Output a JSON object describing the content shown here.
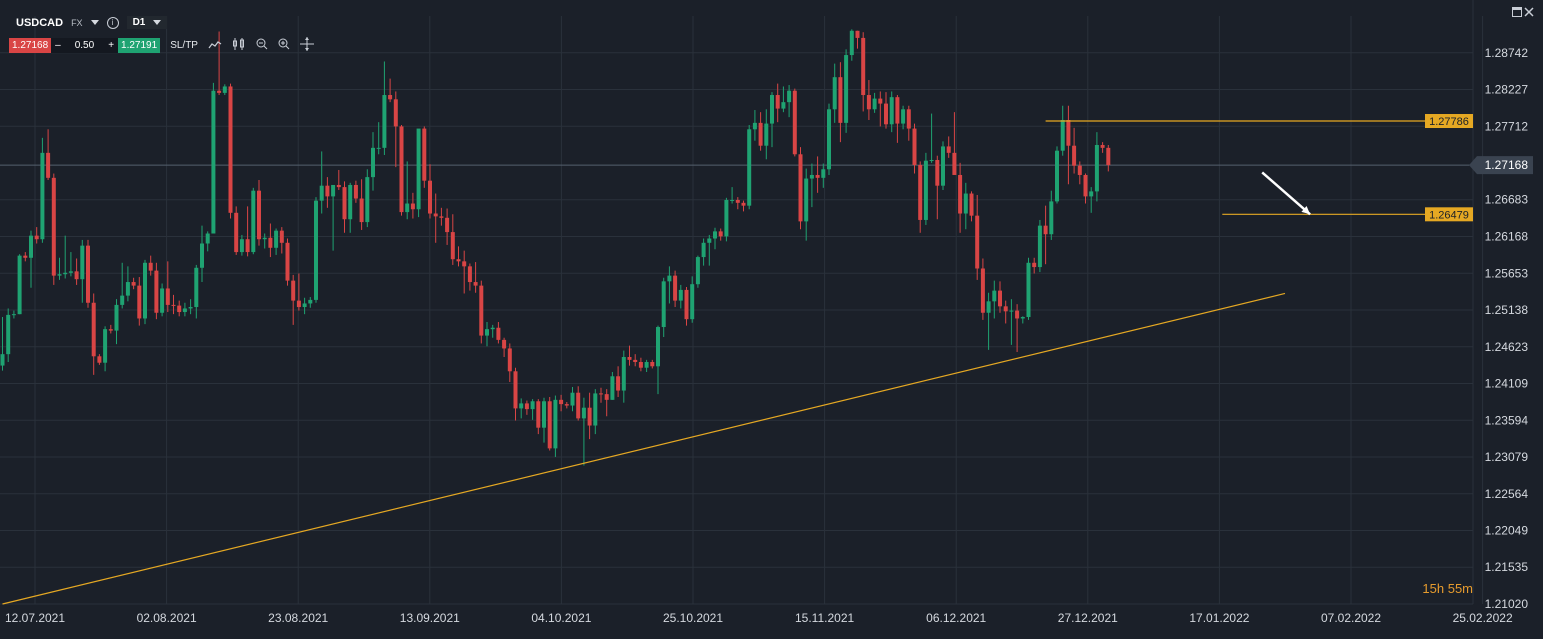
{
  "header": {
    "symbol": "USDCAD",
    "market": "FX",
    "info_icon": "info-icon",
    "timeframe": "D1",
    "bid": "1.27168",
    "quantity": "0.50",
    "ask": "1.27191",
    "minus": "–",
    "plus": "+",
    "sltp_label": "SL/TP",
    "tools": [
      "line-chart-icon",
      "candles-icon",
      "zoom-out-icon",
      "zoom-in-icon",
      "crosshair-icon"
    ]
  },
  "window_controls": [
    "minimize-icon",
    "close-icon"
  ],
  "countdown": "15h 55m",
  "colors": {
    "background": "#1b2029",
    "bull": "#1fa372",
    "bear": "#d94545",
    "annotation": "#e5a823",
    "grid": "#2a313b",
    "current_price_tag": "#3a4350",
    "arrow": "#ffffff"
  },
  "chart_data": {
    "type": "candlestick",
    "timeframe": "D1",
    "ylim": [
      1.2102,
      1.29257
    ],
    "y_ticks": [
      "1.28742",
      "1.28227",
      "1.27712",
      "1.27168",
      "1.26683",
      "1.26168",
      "1.25653",
      "1.25138",
      "1.24623",
      "1.24109",
      "1.23594",
      "1.23079",
      "1.22564",
      "1.22049",
      "1.21535",
      "1.21020"
    ],
    "x_tick_labels": [
      "12.07.2021",
      "02.08.2021",
      "23.08.2021",
      "13.09.2021",
      "04.10.2021",
      "25.10.2021",
      "15.11.2021",
      "06.12.2021",
      "27.12.2021",
      "17.01.2022",
      "07.02.2022",
      "25.02.2022"
    ],
    "current_price": "1.27168",
    "price_labels": [
      {
        "value": 1.27786,
        "text": "1.27786"
      },
      {
        "value": 1.26479,
        "text": "1.26479"
      }
    ],
    "trendline": {
      "from": [
        0,
        1.2102
      ],
      "to": [
        225,
        1.2537
      ]
    },
    "horizontal_lines": [
      {
        "value": 1.27786,
        "from": 183,
        "to": 236
      },
      {
        "value": 1.26479,
        "from": 214,
        "to": 236
      }
    ],
    "arrow": {
      "from": [
        221,
        1.27066
      ],
      "to": [
        228,
        1.26479
      ]
    },
    "candles": [
      [
        1.2436,
        1.2504,
        1.2429,
        1.2452
      ],
      [
        1.2452,
        1.2516,
        1.2441,
        1.2507
      ],
      [
        1.2507,
        1.2513,
        1.2502,
        1.2508
      ],
      [
        1.2508,
        1.2592,
        1.2508,
        1.259
      ],
      [
        1.259,
        1.2595,
        1.2582,
        1.2587
      ],
      [
        1.2587,
        1.2625,
        1.2545,
        1.2618
      ],
      [
        1.2618,
        1.263,
        1.2607,
        1.2613
      ],
      [
        1.2613,
        1.2755,
        1.2608,
        1.2734
      ],
      [
        1.2734,
        1.2767,
        1.2696,
        1.2699
      ],
      [
        1.2699,
        1.2705,
        1.2549,
        1.2562
      ],
      [
        1.2562,
        1.2587,
        1.2556,
        1.2564
      ],
      [
        1.2564,
        1.2618,
        1.2558,
        1.2566
      ],
      [
        1.2566,
        1.2595,
        1.2561,
        1.2568
      ],
      [
        1.2568,
        1.2586,
        1.2549,
        1.2557
      ],
      [
        1.2557,
        1.2612,
        1.2524,
        1.2604
      ],
      [
        1.2604,
        1.2612,
        1.2517,
        1.2524
      ],
      [
        1.2524,
        1.2537,
        1.2423,
        1.2449
      ],
      [
        1.2449,
        1.2452,
        1.2437,
        1.244
      ],
      [
        1.244,
        1.2491,
        1.2428,
        1.2487
      ],
      [
        1.2487,
        1.2493,
        1.2481,
        1.2485
      ],
      [
        1.2485,
        1.2529,
        1.2466,
        1.2521
      ],
      [
        1.2521,
        1.258,
        1.2516,
        1.2534
      ],
      [
        1.2534,
        1.2575,
        1.2526,
        1.2553
      ],
      [
        1.2553,
        1.2559,
        1.2543,
        1.2548
      ],
      [
        1.2548,
        1.256,
        1.2492,
        1.2502
      ],
      [
        1.2502,
        1.2584,
        1.2494,
        1.258
      ],
      [
        1.258,
        1.259,
        1.2562,
        1.2569
      ],
      [
        1.2569,
        1.258,
        1.2501,
        1.251
      ],
      [
        1.251,
        1.2551,
        1.2505,
        1.2544
      ],
      [
        1.2544,
        1.2582,
        1.2511,
        1.2521
      ],
      [
        1.2521,
        1.2535,
        1.2508,
        1.252
      ],
      [
        1.252,
        1.2527,
        1.2505,
        1.2511
      ],
      [
        1.2511,
        1.2524,
        1.2505,
        1.2516
      ],
      [
        1.2516,
        1.2529,
        1.2508,
        1.2518
      ],
      [
        1.2518,
        1.2577,
        1.2502,
        1.2573
      ],
      [
        1.2573,
        1.2632,
        1.2553,
        1.2607
      ],
      [
        1.2607,
        1.2624,
        1.2596,
        1.2621
      ],
      [
        1.2621,
        1.2832,
        1.2621,
        1.2821
      ],
      [
        1.2821,
        1.2904,
        1.2815,
        1.2818
      ],
      [
        1.2818,
        1.283,
        1.2815,
        1.2827
      ],
      [
        1.2827,
        1.2831,
        1.2642,
        1.265
      ],
      [
        1.265,
        1.2659,
        1.2591,
        1.2595
      ],
      [
        1.2595,
        1.2619,
        1.259,
        1.2613
      ],
      [
        1.2613,
        1.2659,
        1.2589,
        1.2595
      ],
      [
        1.2595,
        1.2685,
        1.2592,
        1.2681
      ],
      [
        1.2681,
        1.2696,
        1.2604,
        1.2613
      ],
      [
        1.2613,
        1.2621,
        1.26,
        1.2615
      ],
      [
        1.2615,
        1.2635,
        1.2588,
        1.2601
      ],
      [
        1.2601,
        1.2628,
        1.2591,
        1.2625
      ],
      [
        1.2625,
        1.263,
        1.2593,
        1.2608
      ],
      [
        1.2608,
        1.2614,
        1.2548,
        1.2555
      ],
      [
        1.2555,
        1.2563,
        1.2493,
        1.2527
      ],
      [
        1.2527,
        1.2565,
        1.2513,
        1.2518
      ],
      [
        1.2518,
        1.2531,
        1.2508,
        1.2523
      ],
      [
        1.2523,
        1.2532,
        1.2517,
        1.2528
      ],
      [
        1.2528,
        1.2672,
        1.2524,
        1.2667
      ],
      [
        1.2667,
        1.2736,
        1.2649,
        1.2688
      ],
      [
        1.2688,
        1.27,
        1.2657,
        1.2673
      ],
      [
        1.2673,
        1.2688,
        1.2597,
        1.2689
      ],
      [
        1.2689,
        1.271,
        1.2682,
        1.2686
      ],
      [
        1.2686,
        1.2694,
        1.2622,
        1.2641
      ],
      [
        1.2641,
        1.2692,
        1.2622,
        1.2689
      ],
      [
        1.2689,
        1.2695,
        1.2664,
        1.267
      ],
      [
        1.267,
        1.2697,
        1.2626,
        1.2637
      ],
      [
        1.2637,
        1.2711,
        1.263,
        1.27
      ],
      [
        1.27,
        1.2763,
        1.2681,
        1.2741
      ],
      [
        1.2741,
        1.2777,
        1.2732,
        1.2741
      ],
      [
        1.2741,
        1.2862,
        1.2731,
        1.2815
      ],
      [
        1.2815,
        1.2838,
        1.2805,
        1.2809
      ],
      [
        1.2809,
        1.282,
        1.2714,
        1.2771
      ],
      [
        1.2771,
        1.2773,
        1.2646,
        1.2651
      ],
      [
        1.2651,
        1.2722,
        1.2641,
        1.2663
      ],
      [
        1.2663,
        1.2678,
        1.2642,
        1.2655
      ],
      [
        1.2655,
        1.2764,
        1.2644,
        1.2768
      ],
      [
        1.2768,
        1.2771,
        1.2685,
        1.2695
      ],
      [
        1.2695,
        1.2718,
        1.2642,
        1.2649
      ],
      [
        1.2649,
        1.2677,
        1.2608,
        1.2645
      ],
      [
        1.2645,
        1.2657,
        1.2632,
        1.2643
      ],
      [
        1.2643,
        1.2656,
        1.2605,
        1.2623
      ],
      [
        1.2623,
        1.2648,
        1.2577,
        1.2585
      ],
      [
        1.2585,
        1.2603,
        1.2575,
        1.2582
      ],
      [
        1.2582,
        1.2597,
        1.2537,
        1.2575
      ],
      [
        1.2575,
        1.2579,
        1.2541,
        1.2553
      ],
      [
        1.2553,
        1.2581,
        1.2538,
        1.2548
      ],
      [
        1.2548,
        1.2555,
        1.2467,
        1.2478
      ],
      [
        1.2478,
        1.2497,
        1.2463,
        1.2487
      ],
      [
        1.2487,
        1.2493,
        1.2475,
        1.2489
      ],
      [
        1.2489,
        1.2497,
        1.2467,
        1.2472
      ],
      [
        1.2472,
        1.2475,
        1.2448,
        1.246
      ],
      [
        1.246,
        1.2467,
        1.2413,
        1.2428
      ],
      [
        1.2428,
        1.2433,
        1.2359,
        1.2376
      ],
      [
        1.2376,
        1.239,
        1.2362,
        1.2383
      ],
      [
        1.2383,
        1.2387,
        1.2367,
        1.2375
      ],
      [
        1.2375,
        1.2389,
        1.236,
        1.2386
      ],
      [
        1.2386,
        1.2389,
        1.234,
        1.2349
      ],
      [
        1.2349,
        1.2391,
        1.2328,
        1.2386
      ],
      [
        1.2386,
        1.2392,
        1.2317,
        1.232
      ],
      [
        1.232,
        1.2394,
        1.2308,
        1.2388
      ],
      [
        1.2388,
        1.2395,
        1.2372,
        1.2382
      ],
      [
        1.2382,
        1.2385,
        1.2376,
        1.238
      ],
      [
        1.238,
        1.2406,
        1.2372,
        1.2398
      ],
      [
        1.2398,
        1.2407,
        1.2359,
        1.2362
      ],
      [
        1.2362,
        1.2391,
        1.2296,
        1.2377
      ],
      [
        1.2377,
        1.2398,
        1.2333,
        1.2352
      ],
      [
        1.2352,
        1.2403,
        1.234,
        1.2397
      ],
      [
        1.2397,
        1.2405,
        1.2384,
        1.2396
      ],
      [
        1.2396,
        1.2403,
        1.2365,
        1.2388
      ],
      [
        1.2388,
        1.2427,
        1.2388,
        1.2421
      ],
      [
        1.2421,
        1.2435,
        1.2392,
        1.2401
      ],
      [
        1.2401,
        1.2457,
        1.2384,
        1.2448
      ],
      [
        1.2448,
        1.2464,
        1.2436,
        1.2444
      ],
      [
        1.2444,
        1.2452,
        1.2435,
        1.2441
      ],
      [
        1.2441,
        1.2447,
        1.2428,
        1.2433
      ],
      [
        1.2433,
        1.2444,
        1.2427,
        1.2441
      ],
      [
        1.2441,
        1.2444,
        1.2432,
        1.2435
      ],
      [
        1.2435,
        1.2492,
        1.2396,
        1.249
      ],
      [
        1.249,
        1.2559,
        1.2476,
        1.2554
      ],
      [
        1.2554,
        1.2575,
        1.2523,
        1.2562
      ],
      [
        1.2562,
        1.2569,
        1.2518,
        1.2527
      ],
      [
        1.2527,
        1.2549,
        1.2516,
        1.2542
      ],
      [
        1.2542,
        1.2546,
        1.2492,
        1.2501
      ],
      [
        1.2501,
        1.2561,
        1.2496,
        1.255
      ],
      [
        1.255,
        1.259,
        1.2545,
        1.2588
      ],
      [
        1.2588,
        1.2614,
        1.2576,
        1.2608
      ],
      [
        1.2608,
        1.2619,
        1.2576,
        1.2614
      ],
      [
        1.2614,
        1.2629,
        1.2599,
        1.2624
      ],
      [
        1.2624,
        1.2628,
        1.2611,
        1.2617
      ],
      [
        1.2617,
        1.2671,
        1.261,
        1.2668
      ],
      [
        1.2668,
        1.2686,
        1.2663,
        1.2668
      ],
      [
        1.2668,
        1.2672,
        1.2655,
        1.2664
      ],
      [
        1.2664,
        1.2667,
        1.2652,
        1.266
      ],
      [
        1.266,
        1.2773,
        1.2655,
        1.2767
      ],
      [
        1.2767,
        1.2794,
        1.2751,
        1.2776
      ],
      [
        1.2776,
        1.2791,
        1.2737,
        1.2744
      ],
      [
        1.2744,
        1.2795,
        1.2725,
        1.2775
      ],
      [
        1.2775,
        1.2819,
        1.2742,
        1.2815
      ],
      [
        1.2815,
        1.2831,
        1.2777,
        1.2796
      ],
      [
        1.2796,
        1.2827,
        1.2791,
        1.2805
      ],
      [
        1.2805,
        1.2829,
        1.2784,
        1.2821
      ],
      [
        1.2821,
        1.2824,
        1.2729,
        1.2732
      ],
      [
        1.2732,
        1.2742,
        1.2627,
        1.2638
      ],
      [
        1.2638,
        1.2712,
        1.2611,
        1.2698
      ],
      [
        1.2698,
        1.2719,
        1.2658,
        1.2703
      ],
      [
        1.2703,
        1.2729,
        1.2678,
        1.2699
      ],
      [
        1.2699,
        1.2719,
        1.2685,
        1.2711
      ],
      [
        1.2711,
        1.2803,
        1.2703,
        1.2795
      ],
      [
        1.2795,
        1.2859,
        1.2776,
        1.284
      ],
      [
        1.284,
        1.2861,
        1.2749,
        1.2776
      ],
      [
        1.2776,
        1.2879,
        1.2762,
        1.2871
      ],
      [
        1.2871,
        1.2907,
        1.2863,
        1.2905
      ],
      [
        1.2905,
        1.2905,
        1.288,
        1.2895
      ],
      [
        1.2895,
        1.2903,
        1.2792,
        1.2815
      ],
      [
        1.2815,
        1.2836,
        1.278,
        1.2795
      ],
      [
        1.2795,
        1.2818,
        1.279,
        1.281
      ],
      [
        1.281,
        1.282,
        1.2771,
        1.2803
      ],
      [
        1.2803,
        1.2819,
        1.2768,
        1.2774
      ],
      [
        1.2774,
        1.282,
        1.2763,
        1.2812
      ],
      [
        1.2812,
        1.2815,
        1.2748,
        1.2775
      ],
      [
        1.2775,
        1.28,
        1.2767,
        1.2795
      ],
      [
        1.2795,
        1.28,
        1.2751,
        1.2768
      ],
      [
        1.2768,
        1.2775,
        1.2705,
        1.2717
      ],
      [
        1.2717,
        1.2722,
        1.2622,
        1.264
      ],
      [
        1.264,
        1.2734,
        1.2633,
        1.2723
      ],
      [
        1.2723,
        1.2789,
        1.272,
        1.2724
      ],
      [
        1.2724,
        1.273,
        1.2641,
        1.2688
      ],
      [
        1.2688,
        1.275,
        1.2682,
        1.2743
      ],
      [
        1.2743,
        1.2757,
        1.2727,
        1.2734
      ],
      [
        1.2734,
        1.2791,
        1.2711,
        1.2703
      ],
      [
        1.2703,
        1.272,
        1.2622,
        1.2649
      ],
      [
        1.2649,
        1.2692,
        1.2627,
        1.2677
      ],
      [
        1.2677,
        1.268,
        1.2638,
        1.2646
      ],
      [
        1.2646,
        1.2675,
        1.2556,
        1.2572
      ],
      [
        1.2572,
        1.2586,
        1.25,
        1.251
      ],
      [
        1.251,
        1.2538,
        1.2458,
        1.2526
      ],
      [
        1.2526,
        1.2555,
        1.2502,
        1.2541
      ],
      [
        1.2541,
        1.2554,
        1.251,
        1.2519
      ],
      [
        1.2519,
        1.2527,
        1.2495,
        1.2512
      ],
      [
        1.2512,
        1.2529,
        1.2465,
        1.2513
      ],
      [
        1.2513,
        1.2522,
        1.2455,
        1.2502
      ],
      [
        1.2502,
        1.2505,
        1.2495,
        1.2504
      ],
      [
        1.2504,
        1.2587,
        1.25,
        1.258
      ],
      [
        1.258,
        1.2587,
        1.2565,
        1.2574
      ],
      [
        1.2574,
        1.264,
        1.2567,
        1.2632
      ],
      [
        1.2632,
        1.266,
        1.2578,
        1.262
      ],
      [
        1.262,
        1.2681,
        1.2612,
        1.2666
      ],
      [
        1.2666,
        1.2743,
        1.2663,
        1.2737
      ],
      [
        1.2737,
        1.28,
        1.273,
        1.278
      ],
      [
        1.278,
        1.28,
        1.269,
        1.2744
      ],
      [
        1.2744,
        1.2769,
        1.2705,
        1.2716
      ],
      [
        1.2716,
        1.2722,
        1.269,
        1.2703
      ],
      [
        1.2703,
        1.2705,
        1.2663,
        1.2673
      ],
      [
        1.2673,
        1.2686,
        1.265,
        1.268
      ],
      [
        1.268,
        1.2763,
        1.2666,
        1.2745
      ],
      [
        1.2745,
        1.2749,
        1.2734,
        1.2741
      ],
      [
        1.2741,
        1.2745,
        1.2708,
        1.2717
      ]
    ]
  }
}
